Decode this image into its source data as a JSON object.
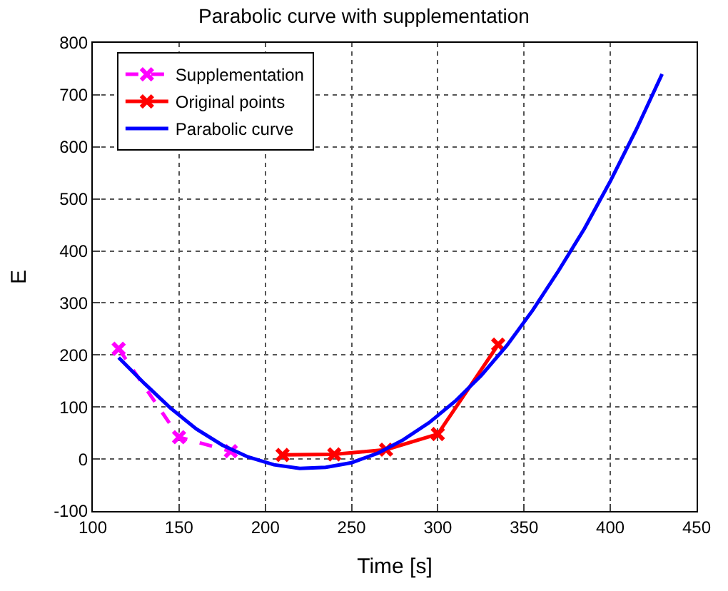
{
  "chart_data": {
    "type": "line",
    "title": "Parabolic curve with supplementation",
    "xlabel": "Time [s]",
    "ylabel": "E",
    "xlim": [
      100,
      450
    ],
    "xticks": [
      100,
      150,
      200,
      250,
      300,
      350,
      400,
      450
    ],
    "ylim": [
      -100,
      800
    ],
    "yticks": [
      -100,
      0,
      100,
      200,
      300,
      400,
      500,
      600,
      700,
      800
    ],
    "grid": true,
    "legend": "top left",
    "series": [
      {
        "name": "Supplementation",
        "color": "#ff00ff",
        "x": [
          115,
          150,
          180
        ],
        "values": [
          212,
          42,
          15
        ],
        "marker": "cross",
        "line_style": "dashed"
      },
      {
        "name": "Original points",
        "color": "#ff0000",
        "x": [
          210,
          240,
          270,
          300,
          335
        ],
        "values": [
          8,
          9,
          18,
          48,
          220
        ],
        "marker": "cross",
        "line_style": "solid"
      },
      {
        "name": "Parabolic curve",
        "color": "#0000ff",
        "x": [
          115,
          130,
          145,
          160,
          175,
          190,
          205,
          220,
          235,
          250,
          265,
          280,
          295,
          310,
          325,
          340,
          355,
          370,
          385,
          400,
          415,
          430
        ],
        "values": [
          195,
          145,
          98,
          58,
          27,
          4,
          -11,
          -18,
          -16,
          -7,
          11,
          37,
          70,
          111,
          160,
          218,
          286,
          362,
          443,
          534,
          633,
          740
        ],
        "marker": "none",
        "line_style": "solid"
      }
    ]
  }
}
